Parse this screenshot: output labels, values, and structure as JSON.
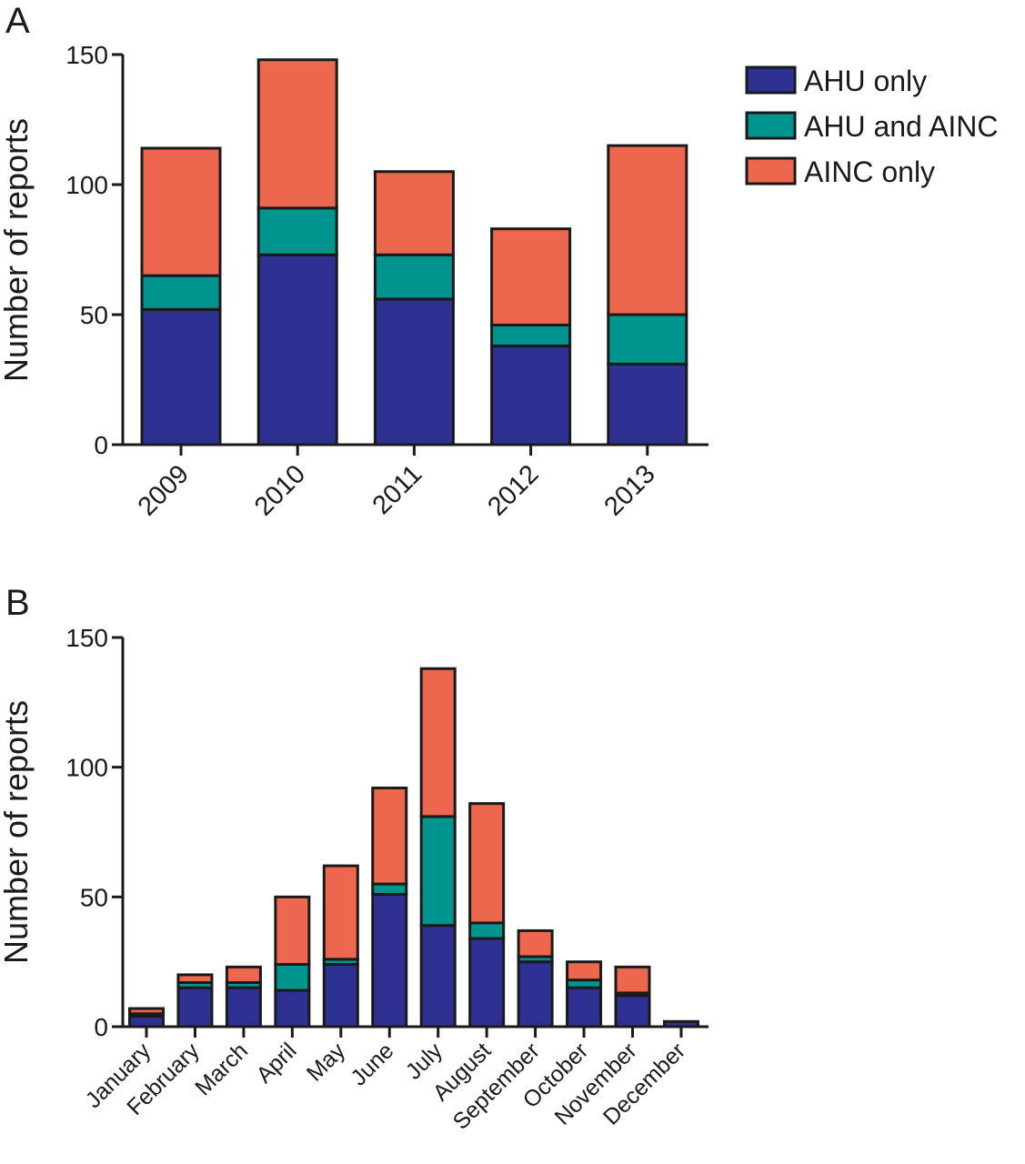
{
  "colors": {
    "AHU only": "#2e3192",
    "AHU and AINC": "#00948f",
    "AINC only": "#ec674d",
    "outline": "#1a1a1a"
  },
  "legend": {
    "placement": "top-right",
    "items": [
      "AHU only",
      "AHU and AINC",
      "AINC only"
    ]
  },
  "chart_data": [
    {
      "type": "bar",
      "stacked": true,
      "panel": "A",
      "categories": [
        "2009",
        "2010",
        "2011",
        "2012",
        "2013"
      ],
      "series": [
        {
          "name": "AHU only",
          "values": [
            52,
            73,
            56,
            38,
            31
          ]
        },
        {
          "name": "AHU and AINC",
          "values": [
            13,
            18,
            17,
            8,
            19
          ]
        },
        {
          "name": "AINC only",
          "values": [
            49,
            57,
            32,
            37,
            65
          ]
        }
      ],
      "title": "",
      "xlabel": "",
      "ylabel": "Number of reports",
      "ylim": [
        0,
        150
      ],
      "yticks": [
        "0",
        "50",
        "100",
        "150"
      ],
      "grid": false
    },
    {
      "type": "bar",
      "stacked": true,
      "panel": "B",
      "categories": [
        "January",
        "February",
        "March",
        "April",
        "May",
        "June",
        "July",
        "August",
        "September",
        "October",
        "November",
        "December"
      ],
      "series": [
        {
          "name": "AHU only",
          "values": [
            4,
            15,
            15,
            14,
            24,
            51,
            39,
            34,
            25,
            15,
            12,
            2
          ]
        },
        {
          "name": "AHU and AINC",
          "values": [
            1,
            2,
            2,
            10,
            2,
            4,
            42,
            6,
            2,
            3,
            1,
            0
          ]
        },
        {
          "name": "AINC only",
          "values": [
            2,
            3,
            6,
            26,
            36,
            37,
            57,
            46,
            10,
            7,
            10,
            0
          ]
        }
      ],
      "title": "",
      "xlabel": "",
      "ylabel": "Number of reports",
      "ylim": [
        0,
        150
      ],
      "yticks": [
        "0",
        "50",
        "100",
        "150"
      ],
      "grid": false
    }
  ]
}
